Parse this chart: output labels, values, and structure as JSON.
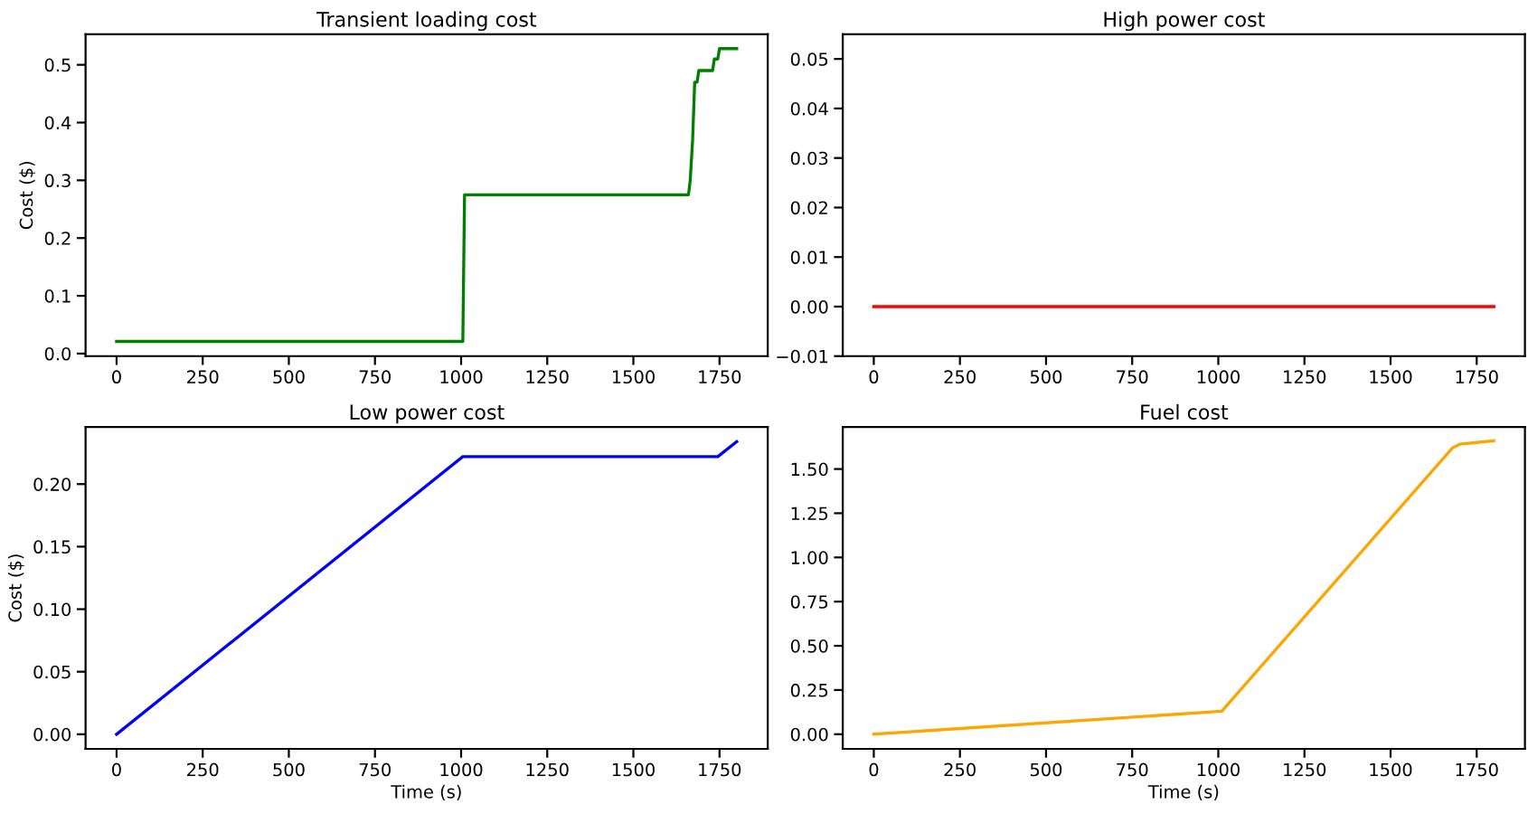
{
  "chart_data": [
    {
      "type": "line",
      "title": "Transient loading cost",
      "ylabel": "Cost ($)",
      "x": [
        0,
        1005,
        1010,
        1660,
        1665,
        1672,
        1678,
        1685,
        1690,
        1730,
        1735,
        1745,
        1750,
        1800
      ],
      "series": [
        {
          "color": "#008000",
          "values": [
            0.021,
            0.021,
            0.275,
            0.275,
            0.3,
            0.37,
            0.47,
            0.47,
            0.49,
            0.49,
            0.51,
            0.51,
            0.528,
            0.528
          ]
        }
      ],
      "xlim": [
        -90,
        1890
      ],
      "xticks": [
        0,
        250,
        500,
        750,
        1000,
        1250,
        1500,
        1750
      ],
      "ylim": [
        -0.0044,
        0.553
      ],
      "yticks": [
        {
          "value": 0,
          "label": "0.0"
        },
        0.1,
        0.2,
        0.3,
        0.4,
        0.5
      ]
    },
    {
      "type": "line",
      "title": "High power cost",
      "x": [
        0,
        1800
      ],
      "series": [
        {
          "color": "#ff0000",
          "values": [
            0,
            0
          ]
        }
      ],
      "xlim": [
        -90,
        1890
      ],
      "xticks": [
        0,
        250,
        500,
        750,
        1000,
        1250,
        1500,
        1750
      ],
      "ylim": [
        -0.01,
        0.055
      ],
      "yticks": [
        {
          "value": -0.01,
          "label": "−0.01"
        },
        {
          "value": 0,
          "label": "0.00"
        },
        0.01,
        0.02,
        0.03,
        0.04,
        0.05
      ]
    },
    {
      "type": "line",
      "title": "Low power cost",
      "xlabel": "Time (s)",
      "ylabel": "Cost ($)",
      "x": [
        0,
        1005,
        1745,
        1800
      ],
      "series": [
        {
          "color": "#0000ff",
          "values": [
            0,
            0.222,
            0.222,
            0.234
          ]
        }
      ],
      "xlim": [
        -90,
        1890
      ],
      "xticks": [
        0,
        250,
        500,
        750,
        1000,
        1250,
        1500,
        1750
      ],
      "ylim": [
        -0.0117,
        0.2457
      ],
      "yticks": [
        {
          "value": 0,
          "label": "0.00"
        },
        0.05,
        {
          "value": 0.1,
          "label": "0.10"
        },
        0.15,
        {
          "value": 0.2,
          "label": "0.20"
        }
      ]
    },
    {
      "type": "line",
      "title": "Fuel cost",
      "xlabel": "Time (s)",
      "x": [
        0,
        1010,
        1680,
        1700,
        1750,
        1800
      ],
      "series": [
        {
          "color": "#ffa500",
          "values": [
            0,
            0.13,
            1.62,
            1.64,
            1.65,
            1.66
          ]
        }
      ],
      "xlim": [
        -90,
        1890
      ],
      "xticks": [
        0,
        250,
        500,
        750,
        1000,
        1250,
        1500,
        1750
      ],
      "ylim": [
        -0.083,
        1.738
      ],
      "yticks": [
        {
          "value": 0,
          "label": "0.00"
        },
        0.25,
        {
          "value": 0.5,
          "label": "0.50"
        },
        0.75,
        {
          "value": 1,
          "label": "1.00"
        },
        1.25,
        {
          "value": 1.5,
          "label": "1.50"
        }
      ]
    }
  ]
}
